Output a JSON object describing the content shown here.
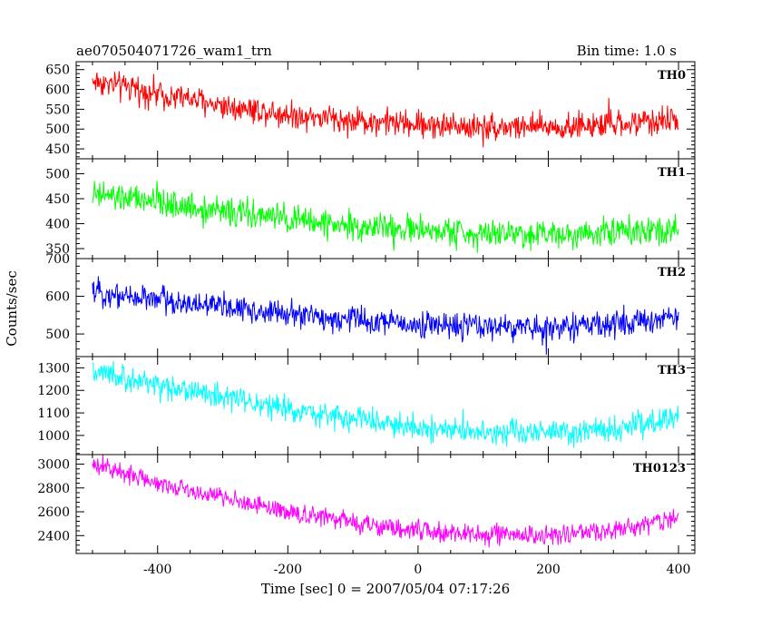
{
  "chart_data": {
    "type": "line",
    "title_left": "ae070504071726_wam1_trn",
    "title_right": "Bin time: 1.0 s",
    "xlabel": "Time [sec] 0 = 2007/05/04 07:17:26",
    "ylabel": "Counts/sec",
    "x_range": [
      -500,
      400
    ],
    "xlim": [
      -525,
      425
    ],
    "x_ticks": [
      -400,
      -200,
      0,
      200,
      400
    ],
    "panels": [
      {
        "name": "TH0",
        "color": "#ff0000",
        "ylim": [
          425,
          670
        ],
        "y_ticks": [
          450,
          500,
          550,
          600,
          650
        ],
        "trend": [
          [
            -500,
            622
          ],
          [
            -400,
            590
          ],
          [
            -300,
            560
          ],
          [
            -200,
            538
          ],
          [
            -100,
            522
          ],
          [
            0,
            512
          ],
          [
            100,
            506
          ],
          [
            200,
            505
          ],
          [
            300,
            510
          ],
          [
            400,
            525
          ]
        ],
        "noise_amplitude": 30
      },
      {
        "name": "TH1",
        "color": "#00ff00",
        "ylim": [
          330,
          530
        ],
        "y_ticks": [
          350,
          400,
          450,
          500
        ],
        "trend": [
          [
            -500,
            458
          ],
          [
            -400,
            442
          ],
          [
            -300,
            425
          ],
          [
            -200,
            408
          ],
          [
            -100,
            395
          ],
          [
            0,
            386
          ],
          [
            100,
            381
          ],
          [
            200,
            380
          ],
          [
            300,
            385
          ],
          [
            400,
            393
          ]
        ],
        "noise_amplitude": 25
      },
      {
        "name": "TH2",
        "color": "#0000ff",
        "ylim": [
          440,
          700
        ],
        "y_ticks": [
          500,
          600,
          700
        ],
        "trend": [
          [
            -500,
            612
          ],
          [
            -400,
            592
          ],
          [
            -300,
            572
          ],
          [
            -200,
            552
          ],
          [
            -100,
            538
          ],
          [
            0,
            526
          ],
          [
            100,
            518
          ],
          [
            200,
            517
          ],
          [
            300,
            525
          ],
          [
            400,
            545
          ]
        ],
        "noise_amplitude": 30
      },
      {
        "name": "TH3",
        "color": "#00ffff",
        "ylim": [
          915,
          1350
        ],
        "y_ticks": [
          1000,
          1100,
          1200,
          1300
        ],
        "trend": [
          [
            -500,
            1275
          ],
          [
            -400,
            1225
          ],
          [
            -300,
            1170
          ],
          [
            -200,
            1115
          ],
          [
            -100,
            1070
          ],
          [
            0,
            1035
          ],
          [
            100,
            1015
          ],
          [
            200,
            1010
          ],
          [
            300,
            1025
          ],
          [
            400,
            1080
          ]
        ],
        "noise_amplitude": 48
      },
      {
        "name": "TH0123",
        "color": "#ff00ff",
        "ylim": [
          2250,
          3080
        ],
        "y_ticks": [
          2400,
          2600,
          2800,
          3000
        ],
        "trend": [
          [
            -500,
            2990
          ],
          [
            -400,
            2850
          ],
          [
            -300,
            2720
          ],
          [
            -200,
            2600
          ],
          [
            -100,
            2510
          ],
          [
            0,
            2440
          ],
          [
            100,
            2405
          ],
          [
            200,
            2400
          ],
          [
            300,
            2440
          ],
          [
            400,
            2555
          ]
        ],
        "noise_amplitude": 70
      }
    ]
  }
}
